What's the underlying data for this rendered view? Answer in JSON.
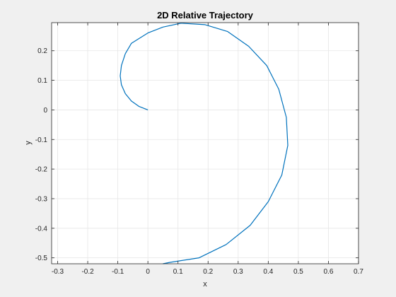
{
  "chart_data": {
    "type": "line",
    "title": "2D Relative Trajectory",
    "xlabel": "x",
    "ylabel": "y",
    "xlim": [
      -0.32,
      0.7
    ],
    "ylim": [
      -0.52,
      0.295
    ],
    "xticks": [
      "-0.3",
      "-0.2",
      "-0.1",
      "0",
      "0.1",
      "0.2",
      "0.3",
      "0.4",
      "0.5",
      "0.6",
      "0.7"
    ],
    "yticks": [
      "0.2",
      "0.1",
      "0",
      "-0.1",
      "-0.2",
      "-0.3",
      "-0.4",
      "-0.5"
    ],
    "grid": true,
    "series": [
      {
        "color": "#0072bd",
        "x": [
          0.0,
          -0.03,
          -0.055,
          -0.075,
          -0.088,
          -0.092,
          -0.088,
          -0.075,
          -0.055,
          -0.0,
          0.05,
          0.11,
          0.19,
          0.265,
          0.335,
          0.395,
          0.435,
          0.46,
          0.465,
          0.445,
          0.4,
          0.34,
          0.26,
          0.17,
          0.075,
          0.05
        ],
        "y": [
          0.0,
          0.012,
          0.03,
          0.055,
          0.085,
          0.115,
          0.15,
          0.19,
          0.225,
          0.26,
          0.28,
          0.293,
          0.288,
          0.265,
          0.215,
          0.15,
          0.07,
          -0.025,
          -0.12,
          -0.22,
          -0.31,
          -0.39,
          -0.455,
          -0.5,
          -0.515,
          -0.52
        ]
      }
    ]
  }
}
